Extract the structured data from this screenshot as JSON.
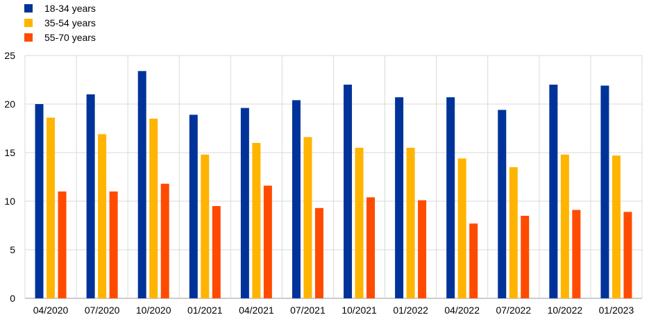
{
  "chart_data": {
    "type": "bar",
    "title": "",
    "xlabel": "",
    "ylabel": "",
    "ylim": [
      0,
      25
    ],
    "yticks": [
      0,
      5,
      10,
      15,
      20,
      25
    ],
    "grid": true,
    "legend_position": "top-left",
    "categories": [
      "04/2020",
      "07/2020",
      "10/2020",
      "01/2021",
      "04/2021",
      "07/2021",
      "10/2021",
      "01/2022",
      "04/2022",
      "07/2022",
      "10/2022",
      "01/2023"
    ],
    "series": [
      {
        "name": "18-34 years",
        "color": "#003399",
        "values": [
          20.0,
          21.0,
          23.4,
          18.9,
          19.6,
          20.4,
          22.0,
          20.7,
          20.7,
          19.4,
          22.0,
          21.9
        ]
      },
      {
        "name": "35-54 years",
        "color": "#FFB400",
        "values": [
          18.6,
          16.9,
          18.5,
          14.8,
          16.0,
          16.6,
          15.5,
          15.5,
          14.4,
          13.5,
          14.8,
          14.7
        ]
      },
      {
        "name": "55-70 years",
        "color": "#FF4B00",
        "values": [
          11.0,
          11.0,
          11.8,
          9.5,
          11.6,
          9.3,
          10.4,
          10.1,
          7.7,
          8.5,
          9.1,
          8.9
        ]
      }
    ]
  }
}
